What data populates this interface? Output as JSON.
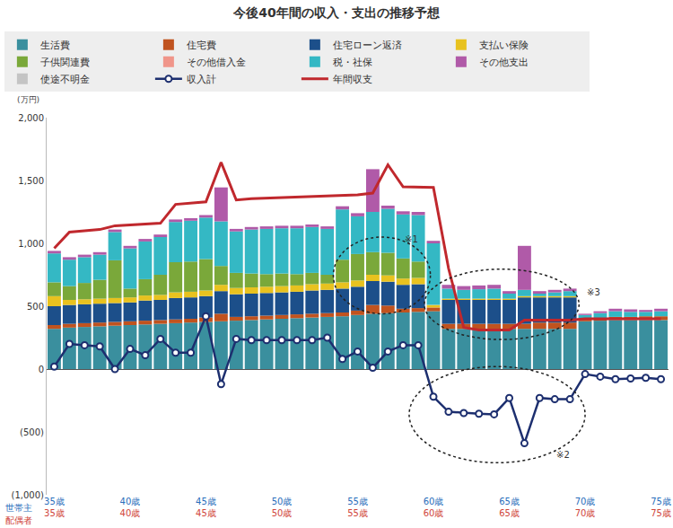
{
  "chart_data": {
    "type": "bar",
    "title": "今後40年間の収入・支出の推移予想",
    "y_label": "(万円)",
    "stacked": true,
    "grid": false,
    "legend": "top",
    "categories": [
      "35歳",
      null,
      null,
      null,
      null,
      "40歳",
      null,
      null,
      null,
      null,
      "45歳",
      null,
      null,
      null,
      null,
      "50歳",
      null,
      null,
      null,
      null,
      "55歳",
      null,
      null,
      null,
      null,
      "60歳",
      null,
      null,
      null,
      null,
      "65歳",
      null,
      null,
      null,
      null,
      "70歳",
      null,
      null,
      null,
      null,
      "75歳"
    ],
    "spouse_categories": [
      "35歳",
      null,
      null,
      null,
      null,
      "40歳",
      null,
      null,
      null,
      null,
      "45歳",
      null,
      null,
      null,
      null,
      "50歳",
      null,
      null,
      null,
      null,
      "55歳",
      null,
      null,
      null,
      null,
      "60歳",
      null,
      null,
      null,
      null,
      "65歳",
      null,
      null,
      null,
      null,
      "70歳",
      null,
      null,
      null,
      null,
      "75歳"
    ],
    "row_labels": [
      {
        "text": "世帯主",
        "color": "#2a6ebb"
      },
      {
        "text": "配偶者",
        "color": "#d0453b"
      }
    ],
    "ylim": [
      -1000,
      2000
    ],
    "yticks": [
      {
        "value": -1000,
        "label": "(1,000)"
      },
      {
        "value": -500,
        "label": "(500)"
      },
      0,
      500,
      {
        "value": 1000,
        "label": "1,000"
      },
      {
        "value": 1500,
        "label": "1,500"
      },
      {
        "value": 2000,
        "label": "2,000"
      }
    ],
    "series": [
      {
        "name": "生活費",
        "type": "bar",
        "color": "#3a8f9e",
        "values": [
          320,
          330,
          335,
          340,
          345,
          350,
          355,
          360,
          365,
          370,
          375,
          380,
          385,
          390,
          395,
          400,
          405,
          410,
          415,
          420,
          430,
          440,
          445,
          450,
          455,
          460,
          320,
          320,
          320,
          320,
          320,
          320,
          320,
          320,
          320,
          380,
          385,
          390,
          390,
          390,
          390
        ]
      },
      {
        "name": "住宅費",
        "type": "bar",
        "color": "#c0531f",
        "values": [
          30,
          30,
          30,
          30,
          30,
          30,
          30,
          30,
          30,
          30,
          35,
          60,
          30,
          30,
          30,
          30,
          30,
          30,
          30,
          30,
          35,
          70,
          60,
          30,
          30,
          30,
          40,
          40,
          40,
          40,
          40,
          40,
          50,
          50,
          50,
          20,
          20,
          25,
          25,
          30,
          30
        ]
      },
      {
        "name": "住宅ローン返済",
        "type": "bar",
        "color": "#1c4f8a",
        "values": [
          150,
          150,
          150,
          150,
          150,
          150,
          160,
          160,
          170,
          170,
          170,
          180,
          180,
          180,
          180,
          180,
          180,
          185,
          185,
          190,
          190,
          190,
          190,
          190,
          190,
          0,
          190,
          190,
          190,
          190,
          190,
          210,
          200,
          200,
          200,
          0,
          0,
          0,
          0,
          0,
          0
        ]
      },
      {
        "name": "支払い保険",
        "type": "bar",
        "color": "#e8c21f",
        "values": [
          80,
          40,
          40,
          40,
          40,
          40,
          40,
          40,
          45,
          45,
          45,
          50,
          50,
          50,
          50,
          50,
          50,
          50,
          50,
          50,
          50,
          50,
          50,
          50,
          50,
          20,
          10,
          10,
          10,
          10,
          10,
          10,
          10,
          10,
          10,
          0,
          0,
          0,
          0,
          0,
          0
        ]
      },
      {
        "name": "子供関連費",
        "type": "bar",
        "color": "#7aa83a",
        "values": [
          110,
          110,
          130,
          150,
          300,
          70,
          130,
          160,
          240,
          240,
          250,
          150,
          120,
          110,
          100,
          100,
          90,
          90,
          70,
          180,
          210,
          180,
          180,
          160,
          130,
          0,
          0,
          0,
          0,
          0,
          0,
          0,
          0,
          0,
          0,
          0,
          0,
          0,
          0,
          0,
          0
        ]
      },
      {
        "name": "その他借入金",
        "type": "bar",
        "color": "#f0958a",
        "values": [
          0,
          0,
          0,
          0,
          0,
          0,
          0,
          0,
          0,
          0,
          0,
          0,
          0,
          0,
          0,
          0,
          0,
          0,
          0,
          0,
          0,
          0,
          0,
          0,
          0,
          0,
          0,
          0,
          0,
          0,
          0,
          0,
          0,
          0,
          0,
          0,
          0,
          0,
          0,
          0,
          0
        ]
      },
      {
        "name": "税・社保",
        "type": "bar",
        "color": "#34b8c4",
        "values": [
          230,
          210,
          205,
          200,
          225,
          320,
          300,
          300,
          320,
          325,
          330,
          355,
          330,
          350,
          360,
          360,
          365,
          365,
          365,
          400,
          300,
          320,
          350,
          350,
          370,
          490,
          80,
          70,
          75,
          80,
          40,
          50,
          20,
          30,
          40,
          30,
          40,
          45,
          40,
          35,
          40
        ]
      },
      {
        "name": "その他支出",
        "type": "bar",
        "color": "#b05aa8",
        "values": [
          20,
          20,
          20,
          20,
          20,
          20,
          20,
          20,
          20,
          20,
          20,
          270,
          20,
          20,
          20,
          20,
          20,
          20,
          20,
          25,
          25,
          340,
          25,
          25,
          25,
          20,
          30,
          30,
          30,
          30,
          20,
          350,
          20,
          20,
          20,
          10,
          15,
          20,
          20,
          15,
          20
        ]
      },
      {
        "name": "使途不明金",
        "type": "bar",
        "color": "#c4c4c4",
        "values": [
          0,
          0,
          0,
          0,
          0,
          0,
          0,
          0,
          0,
          0,
          0,
          0,
          0,
          0,
          0,
          0,
          0,
          0,
          0,
          0,
          0,
          0,
          0,
          0,
          0,
          0,
          0,
          0,
          0,
          0,
          0,
          0,
          0,
          0,
          0,
          0,
          0,
          0,
          0,
          0,
          0
        ]
      },
      {
        "name": "収入計",
        "type": "line",
        "marker": "circle",
        "line_style": "solid",
        "color": "#1d2f6f",
        "values": [
          20,
          200,
          190,
          180,
          0,
          160,
          110,
          240,
          130,
          130,
          420,
          -120,
          240,
          230,
          230,
          230,
          230,
          230,
          250,
          80,
          140,
          10,
          140,
          190,
          190,
          -220,
          -340,
          -350,
          -355,
          -360,
          -230,
          -590,
          -230,
          -240,
          -240,
          -40,
          -60,
          -80,
          -75,
          -70,
          -80
        ]
      },
      {
        "name": "年間収支",
        "type": "line",
        "line_style": "solid",
        "color": "#c0282d",
        "values": [
          960,
          1090,
          1100,
          1110,
          1140,
          1145,
          1150,
          1160,
          1310,
          1320,
          1330,
          1645,
          1345,
          1355,
          1360,
          1365,
          1370,
          1370,
          1380,
          1385,
          1385,
          1400,
          1625,
          1450,
          1450,
          1445,
          800,
          330,
          310,
          310,
          310,
          390,
          390,
          390,
          390,
          400,
          400,
          400,
          400,
          400,
          400
        ]
      }
    ],
    "annotations": [
      {
        "text": "※1",
        "x": 23,
        "y": 1030,
        "region": {
          "x0": 18.4,
          "x1": 24.8,
          "y0": 440,
          "y1": 1050
        }
      },
      {
        "text": "※2",
        "x": 33,
        "y": -680,
        "region": {
          "x0": 23.4,
          "x1": 35.0,
          "y0": -745,
          "y1": 20
        }
      },
      {
        "text": "※3",
        "x": 35,
        "y": 610,
        "region": {
          "x0": 24.4,
          "x1": 34.6,
          "y0": 235,
          "y1": 795
        }
      }
    ]
  }
}
